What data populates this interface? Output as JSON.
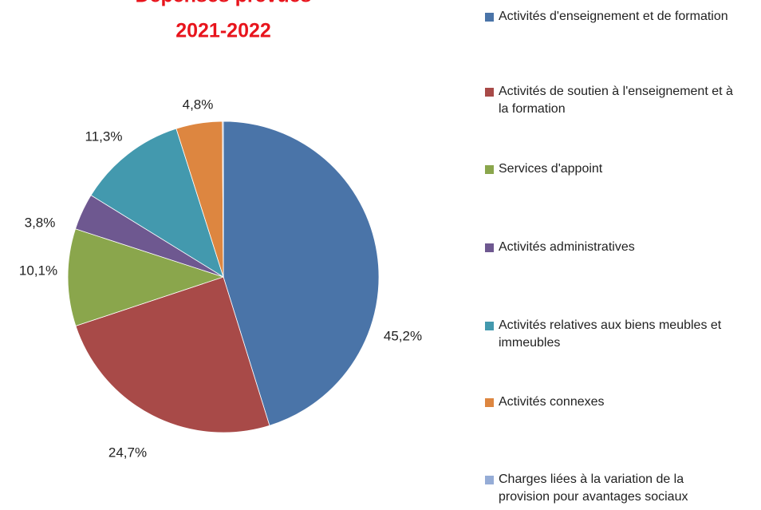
{
  "chart_data": {
    "type": "pie",
    "title": [
      "Dépenses prévues",
      "2021-2022"
    ],
    "categories": [
      "Activités d'enseignement et de formation",
      "Activités de soutien à l'enseignement et à la formation",
      "Services d'appoint",
      "Activités administratives",
      "Activités relatives aux biens meubles et immeubles",
      "Activités connexes",
      "Charges liées à la variation de la provision pour avantages sociaux"
    ],
    "values": [
      45.2,
      24.7,
      10.1,
      3.8,
      11.3,
      4.8,
      0.1
    ],
    "value_labels": [
      "45,2%",
      "24,7%",
      "10,1%",
      "3,8%",
      "11,3%",
      "4,8%",
      null
    ],
    "colors": [
      "#4a74a8",
      "#a84a48",
      "#8aa64c",
      "#6e5890",
      "#4399ae",
      "#dd8640",
      "#95acd6"
    ],
    "legend": "right"
  }
}
